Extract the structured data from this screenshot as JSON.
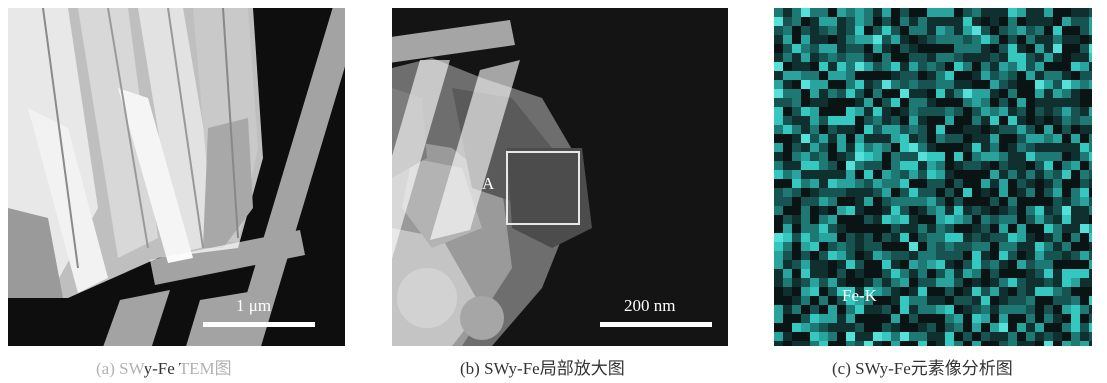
{
  "panels": {
    "a": {
      "scale_label": "1 μm",
      "caption": "(a) SWy-Fe TEM图"
    },
    "b": {
      "region_label": "A",
      "scale_label": "200 nm",
      "caption": "(b) SWy-Fe局部放大图"
    },
    "c": {
      "element_label": "Fe-K",
      "caption": "(c) SWy-Fe元素像分析图",
      "map_color": "#2ec9c4"
    }
  }
}
